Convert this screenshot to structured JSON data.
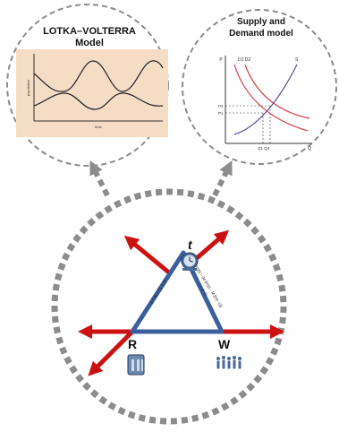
{
  "lotka": {
    "title_line1": "LOTKA–VOLTERRA",
    "title_line2": "Model",
    "ylabel": "population",
    "xlabel": "time"
  },
  "supply_demand": {
    "title_line1": "Supply and",
    "title_line2": "Demand model",
    "axis_p": "P",
    "axis_q": "Q",
    "label_d1d2": "D1   D2",
    "label_s": "S",
    "label_p2": "P2",
    "label_p1": "P1",
    "label_q1q2": "Q1 Q2"
  },
  "triangle": {
    "node_top": "t",
    "node_left": "R",
    "node_right": "W",
    "edge_left_formula": "s = s₀ · (1 + r)ᵗ",
    "edge_right_formula_line1": "P(t)[t] = (M·[P(t)] − M·[P(t−1)])",
    "edge_right_formula_line2": "t − (t−1)"
  },
  "colors": {
    "arrow_red": "#cc1111",
    "triangle_blue": "#3b5f9e",
    "dashed_gray": "#8c8c8c",
    "chart_bg": "#f5dcc5"
  }
}
